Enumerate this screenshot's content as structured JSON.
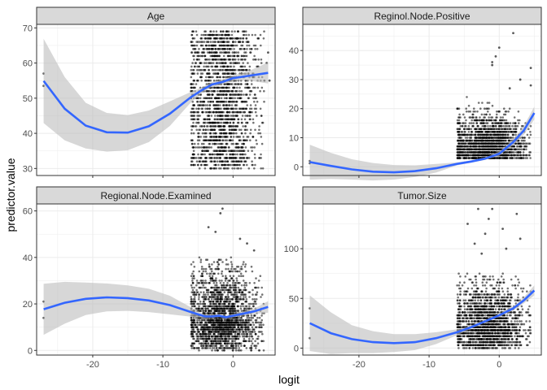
{
  "chart_data": {
    "type": "scatter",
    "xlabel": "logit",
    "ylabel": "predictor.value",
    "xlim": [
      -28,
      6
    ],
    "xticks": [
      -20,
      -10,
      0
    ],
    "grid": true,
    "colors": {
      "points": "#000000",
      "smooth": "#3366FF",
      "ribbon": "#bdbdbd",
      "strip": "#d9d9d9",
      "panel_border": "#333333",
      "grid": "#ebebeb"
    },
    "panels": [
      {
        "title": "Age",
        "ylim": [
          28,
          71
        ],
        "yticks": [
          30,
          40,
          50,
          60,
          70
        ],
        "cluster": {
          "x_range": [
            -6,
            4.5
          ],
          "y_range": [
            30,
            69
          ],
          "step": 1,
          "n": 2000
        },
        "outliers": [
          {
            "x": -27,
            "y": 57
          },
          {
            "x": -27,
            "y": 53.5
          },
          {
            "x": 5,
            "y": 63
          },
          {
            "x": 4.8,
            "y": 60
          },
          {
            "x": 5.2,
            "y": 55
          }
        ],
        "smooth": [
          {
            "x": -27,
            "y": 54.9
          },
          {
            "x": -24,
            "y": 47
          },
          {
            "x": -21,
            "y": 42.2
          },
          {
            "x": -18,
            "y": 40.3
          },
          {
            "x": -15,
            "y": 40.2
          },
          {
            "x": -12,
            "y": 42
          },
          {
            "x": -9,
            "y": 45.6
          },
          {
            "x": -6,
            "y": 50.3
          },
          {
            "x": -4.5,
            "y": 52.2
          },
          {
            "x": -3,
            "y": 53.9
          },
          {
            "x": -1.5,
            "y": 54.6
          },
          {
            "x": 0,
            "y": 55.7
          },
          {
            "x": 2,
            "y": 56.3
          },
          {
            "x": 5,
            "y": 57.2
          }
        ],
        "ribbon_half": [
          12,
          9,
          6.5,
          5.5,
          5,
          4.5,
          3.5,
          1.5,
          0.8,
          0.7,
          0.7,
          0.8,
          1.2,
          3
        ]
      },
      {
        "title": "Reginol.Node.Positive",
        "ylim": [
          -3,
          49
        ],
        "yticks": [
          0,
          10,
          20,
          30,
          40
        ],
        "cluster": {
          "x_range": [
            -6,
            4.5
          ],
          "y_range": [
            0,
            25
          ],
          "step": 1,
          "n": 1800
        },
        "outliers": [
          {
            "x": -27,
            "y": 2
          },
          {
            "x": -27,
            "y": 1.2
          },
          {
            "x": 2,
            "y": 46
          },
          {
            "x": 0,
            "y": 41
          },
          {
            "x": -1,
            "y": 36
          },
          {
            "x": -1,
            "y": 35
          },
          {
            "x": -0.5,
            "y": 38
          },
          {
            "x": 4.5,
            "y": 34
          },
          {
            "x": 3,
            "y": 30
          },
          {
            "x": 4.5,
            "y": 28
          },
          {
            "x": 1.5,
            "y": 27
          }
        ],
        "smooth": [
          {
            "x": -27,
            "y": 1.6
          },
          {
            "x": -24,
            "y": 0.3
          },
          {
            "x": -21,
            "y": -0.9
          },
          {
            "x": -18,
            "y": -1.7
          },
          {
            "x": -15,
            "y": -1.9
          },
          {
            "x": -12,
            "y": -1.5
          },
          {
            "x": -9,
            "y": -0.5
          },
          {
            "x": -6,
            "y": 1
          },
          {
            "x": -4,
            "y": 1.8
          },
          {
            "x": -2,
            "y": 2.8
          },
          {
            "x": 0,
            "y": 4.5
          },
          {
            "x": 2,
            "y": 8.5
          },
          {
            "x": 3.5,
            "y": 12.5
          },
          {
            "x": 5,
            "y": 18.5
          }
        ],
        "ribbon_half": [
          6,
          4.5,
          3.5,
          3,
          2.5,
          2,
          1.5,
          0.5,
          0.4,
          0.4,
          0.7,
          1,
          1.5,
          2.2
        ]
      },
      {
        "title": "Regional.Node.Examined",
        "ylim": [
          -2,
          63
        ],
        "yticks": [
          0,
          20,
          40,
          60
        ],
        "cluster": {
          "x_range": [
            -6,
            4.5
          ],
          "y_range": [
            0,
            40
          ],
          "step": 1,
          "n": 2000
        },
        "outliers": [
          {
            "x": -27,
            "y": 21
          },
          {
            "x": -27,
            "y": 14
          },
          {
            "x": -1.5,
            "y": 61
          },
          {
            "x": -1.8,
            "y": 59
          },
          {
            "x": -3.5,
            "y": 53
          },
          {
            "x": 2,
            "y": 46
          },
          {
            "x": 3,
            "y": 43
          },
          {
            "x": 1,
            "y": 48
          },
          {
            "x": -2.5,
            "y": 51
          }
        ],
        "smooth": [
          {
            "x": -27,
            "y": 17.7
          },
          {
            "x": -24,
            "y": 20.5
          },
          {
            "x": -21,
            "y": 22.2
          },
          {
            "x": -18,
            "y": 22.8
          },
          {
            "x": -15,
            "y": 22.5
          },
          {
            "x": -12,
            "y": 21.5
          },
          {
            "x": -9,
            "y": 19.5
          },
          {
            "x": -6,
            "y": 16.5
          },
          {
            "x": -4,
            "y": 14.6
          },
          {
            "x": -3,
            "y": 14.6
          },
          {
            "x": -2,
            "y": 14.9
          },
          {
            "x": -1,
            "y": 14.3
          },
          {
            "x": 0,
            "y": 14.9
          },
          {
            "x": 3,
            "y": 16.8
          },
          {
            "x": 5,
            "y": 18.7
          }
        ],
        "ribbon_half": [
          11,
          9,
          7,
          6,
          5.5,
          5,
          4,
          2,
          0.8,
          0.6,
          0.6,
          0.6,
          0.7,
          1.2,
          2.5
        ]
      },
      {
        "title": "Tumor.Size",
        "ylim": [
          -7,
          145
        ],
        "yticks": [
          0,
          50,
          100
        ],
        "cluster": {
          "x_range": [
            -6,
            4.5
          ],
          "y_range": [
            0,
            75
          ],
          "step": 3,
          "n": 1800
        },
        "outliers": [
          {
            "x": -27,
            "y": 40
          },
          {
            "x": -27,
            "y": 10
          },
          {
            "x": -1,
            "y": 140
          },
          {
            "x": -3,
            "y": 140
          },
          {
            "x": 2.5,
            "y": 135
          },
          {
            "x": -1.5,
            "y": 130
          },
          {
            "x": -4.5,
            "y": 125
          },
          {
            "x": 0.5,
            "y": 120
          },
          {
            "x": -2,
            "y": 115
          },
          {
            "x": 3,
            "y": 110
          },
          {
            "x": -3.5,
            "y": 105
          },
          {
            "x": 1,
            "y": 100
          },
          {
            "x": -2.5,
            "y": 95
          }
        ],
        "smooth": [
          {
            "x": -27,
            "y": 25
          },
          {
            "x": -24,
            "y": 15
          },
          {
            "x": -21,
            "y": 9
          },
          {
            "x": -18,
            "y": 6
          },
          {
            "x": -15,
            "y": 5
          },
          {
            "x": -12,
            "y": 6
          },
          {
            "x": -9,
            "y": 10
          },
          {
            "x": -6,
            "y": 16
          },
          {
            "x": -4,
            "y": 21
          },
          {
            "x": -2,
            "y": 27
          },
          {
            "x": 0,
            "y": 33
          },
          {
            "x": 2,
            "y": 40
          },
          {
            "x": 3.5,
            "y": 48
          },
          {
            "x": 5,
            "y": 58
          }
        ],
        "ribbon_half": [
          28,
          21,
          14,
          11,
          9,
          8,
          6,
          3,
          1.5,
          1.2,
          1.5,
          2,
          3,
          5
        ]
      }
    ]
  }
}
